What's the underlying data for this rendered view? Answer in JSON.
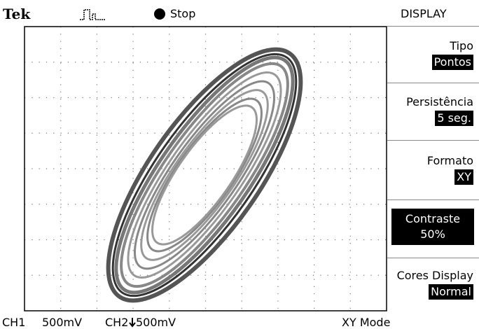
{
  "header": {
    "brand": "Tek",
    "status": "Stop",
    "menu_title": "DISPLAY"
  },
  "menu": [
    {
      "label": "Tipo",
      "value": "Pontos"
    },
    {
      "label": "Persistência",
      "value": "5 seg."
    },
    {
      "label": "Formato",
      "value": "XY"
    },
    {
      "label": "Contraste",
      "value": "50%"
    },
    {
      "label": "Cores Display",
      "value": "Normal"
    }
  ],
  "footer": {
    "ch1": "CH1",
    "ch1_scale": "500mV",
    "ch2": "CH2",
    "ch2_scale": "500mV",
    "mode": "XY Mode"
  }
}
